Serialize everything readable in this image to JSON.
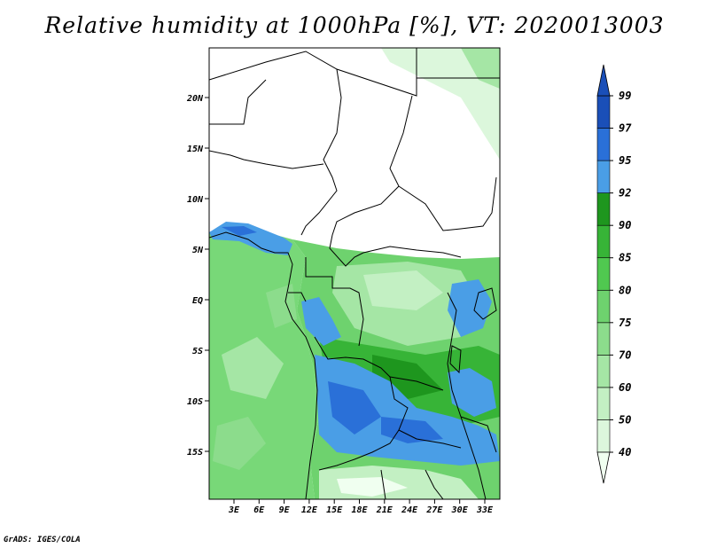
{
  "title": "Relative humidity at 1000hPa [%], VT: 2020013003",
  "credit": "GrADS: IGES/COLA",
  "map": {
    "lat_labels": [
      "20N",
      "15N",
      "10N",
      "5N",
      "EQ",
      "5S",
      "10S",
      "15S"
    ],
    "lon_labels": [
      "3E",
      "6E",
      "9E",
      "12E",
      "15E",
      "18E",
      "21E",
      "24E",
      "27E",
      "30E",
      "33E"
    ]
  },
  "colorbar": {
    "levels": [
      "40",
      "50",
      "60",
      "70",
      "75",
      "80",
      "85",
      "90",
      "92",
      "95",
      "97",
      "99"
    ],
    "colors": [
      "#f0fff0",
      "#dcf7dc",
      "#c3f0c3",
      "#a5e6a5",
      "#8cdc8c",
      "#6ed26e",
      "#50c850",
      "#37b437",
      "#1e961e",
      "#4a9ee6",
      "#2a70d8",
      "#1a4fb8"
    ]
  },
  "colors": {
    "land_dry": "#ffffff",
    "ocean": "#78d878",
    "forest": "#44b844",
    "wet": "#2a70d8",
    "border": "#000000"
  }
}
